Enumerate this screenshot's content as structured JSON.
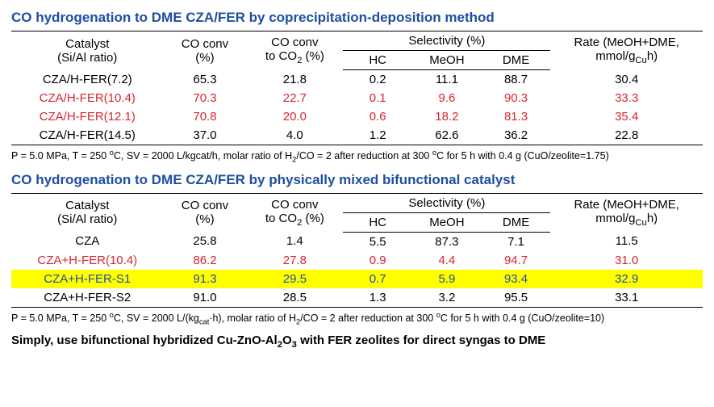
{
  "table1": {
    "title": "CO hydrogenation to DME CZA/FER by coprecipitation-deposition method",
    "headers": {
      "catalyst": "Catalyst\n(Si/Al ratio)",
      "co_conv": "CO conv\n(%)",
      "co_conv_co2": "CO conv\nto CO₂ (%)",
      "selectivity": "Selectivity (%)",
      "hc": "HC",
      "meoh": "MeOH",
      "dme": "DME",
      "rate": "Rate (MeOH+DME,\nmmol/g_Cu h)"
    },
    "rows": [
      {
        "catalyst": "CZA/H-FER(7.2)",
        "co": "65.3",
        "co2": "21.8",
        "hc": "0.2",
        "meoh": "11.1",
        "dme": "88.7",
        "rate": "30.4",
        "cls": ""
      },
      {
        "catalyst": "CZA/H-FER(10.4)",
        "co": "70.3",
        "co2": "22.7",
        "hc": "0.1",
        "meoh": "9.6",
        "dme": "90.3",
        "rate": "33.3",
        "cls": "red"
      },
      {
        "catalyst": "CZA/H-FER(12.1)",
        "co": "70.8",
        "co2": "20.0",
        "hc": "0.6",
        "meoh": "18.2",
        "dme": "81.3",
        "rate": "35.4",
        "cls": "red"
      },
      {
        "catalyst": "CZA/H-FER(14.5)",
        "co": "37.0",
        "co2": "4.0",
        "hc": "1.2",
        "meoh": "62.6",
        "dme": "36.2",
        "rate": "22.8",
        "cls": ""
      }
    ],
    "footnote": "P = 5.0 MPa, T = 250 °C, SV = 2000 L/kgcat/h, molar ratio of H₂/CO = 2 after reduction at 300 °C for 5 h with 0.4 g (CuO/zeolite=1.75)"
  },
  "table2": {
    "title": "CO hydrogenation to DME CZA/FER by physically mixed bifunctional catalyst",
    "rows": [
      {
        "catalyst": "CZA",
        "co": "25.8",
        "co2": "1.4",
        "hc": "5.5",
        "meoh": "87.3",
        "dme": "7.1",
        "rate": "11.5",
        "cls": "",
        "hl": false
      },
      {
        "catalyst": "CZA+H-FER(10.4)",
        "co": "86.2",
        "co2": "27.8",
        "hc": "0.9",
        "meoh": "4.4",
        "dme": "94.7",
        "rate": "31.0",
        "cls": "red",
        "hl": false
      },
      {
        "catalyst": "CZA+H-FER-S1",
        "co": "91.3",
        "co2": "29.5",
        "hc": "0.7",
        "meoh": "5.9",
        "dme": "93.4",
        "rate": "32.9",
        "cls": "blue",
        "hl": true
      },
      {
        "catalyst": "CZA+H-FER-S2",
        "co": "91.0",
        "co2": "28.5",
        "hc": "1.3",
        "meoh": "3.2",
        "dme": "95.5",
        "rate": "33.1",
        "cls": "",
        "hl": false
      }
    ],
    "footnote": "P = 5.0 MPa, T = 250 °C, SV = 2000 L/(kg_cat·h), molar ratio of H₂/CO = 2 after reduction at 300 °C for 5 h with 0.4 g (CuO/zeolite=10)"
  },
  "conclusion": "Simply, use bifunctional hybridized Cu-ZnO-Al₂O₃ with FER zeolites for direct syngas to DME",
  "colwidths": [
    "22%",
    "12%",
    "14%",
    "10%",
    "10%",
    "10%",
    "22%"
  ]
}
